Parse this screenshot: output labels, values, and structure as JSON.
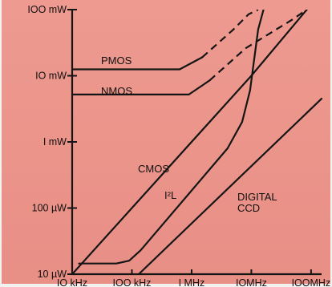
{
  "chart_data": {
    "type": "line",
    "title": "",
    "xlabel": "",
    "ylabel": "",
    "x_scale": "log",
    "y_scale": "log",
    "xlim": [
      10000,
      150000000
    ],
    "ylim": [
      1e-05,
      0.1
    ],
    "grid": false,
    "legend": "none",
    "x_ticks": [
      {
        "value": 10000,
        "label": "IO kHz"
      },
      {
        "value": 100000,
        "label": "IOO kHz"
      },
      {
        "value": 1000000,
        "label": "I MHz"
      },
      {
        "value": 10000000,
        "label": "IOMHz"
      },
      {
        "value": 100000000,
        "label": "IOOMHz"
      }
    ],
    "y_ticks": [
      {
        "value": 1e-05,
        "label": "10 µW"
      },
      {
        "value": 0.0001,
        "label": "100 µW"
      },
      {
        "value": 0.001,
        "label": "I mW"
      },
      {
        "value": 0.01,
        "label": "IO mW"
      },
      {
        "value": 0.1,
        "label": "IOO mW"
      }
    ],
    "series": [
      {
        "name": "PMOS",
        "label_text": "PMOS",
        "points": [
          [
            10000,
            0.0125
          ],
          [
            630000,
            0.0125
          ],
          [
            1500000,
            0.019
          ]
        ],
        "dashed_points": [
          [
            1500000,
            0.019
          ],
          [
            5000000,
            0.05
          ],
          [
            9000000,
            0.085
          ],
          [
            13000000,
            0.1
          ]
        ]
      },
      {
        "name": "NMOS",
        "label_text": "NMOS",
        "points": [
          [
            10000,
            0.0052
          ],
          [
            900000,
            0.0052
          ],
          [
            2000000,
            0.0085
          ]
        ],
        "dashed_points": [
          [
            2000000,
            0.0085
          ],
          [
            8000000,
            0.026
          ],
          [
            50000000,
            0.072
          ],
          [
            85000000,
            0.1
          ]
        ]
      },
      {
        "name": "CMOS",
        "label_text": "CMOS",
        "points": [
          [
            10000,
            1e-05
          ],
          [
            10000000,
            0.01
          ],
          [
            85000000,
            0.1
          ]
        ]
      },
      {
        "name": "I2L",
        "label_text": "I²L",
        "points": [
          [
            13000,
            1.45e-05
          ],
          [
            55000,
            1.45e-05
          ],
          [
            90000,
            1.6e-05
          ],
          [
            140000,
            2.3e-05
          ],
          [
            4000000,
            0.0008
          ],
          [
            7000000,
            0.002
          ],
          [
            9500000,
            0.006
          ],
          [
            13000000,
            0.05
          ],
          [
            16000000,
            0.1
          ]
        ]
      },
      {
        "name": "DIGITAL CCD",
        "label_text": [
          "DIGITAL",
          "CCD"
        ],
        "points": [
          [
            130000,
            1e-05
          ],
          [
            150000000,
            0.0045
          ]
        ]
      }
    ],
    "colors": {
      "line": "#151515",
      "background": "#ed978d",
      "axes": "#151515"
    }
  }
}
